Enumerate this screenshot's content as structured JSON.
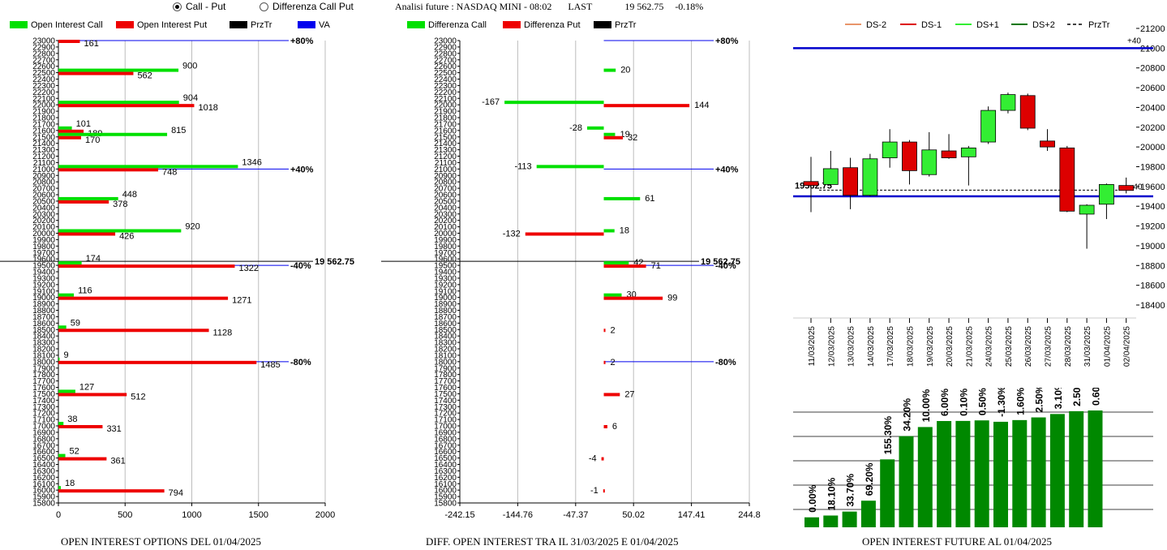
{
  "header": {
    "radio_options": [
      {
        "label": "Call - Put",
        "selected": true
      },
      {
        "label": "Differenza Call Put",
        "selected": false
      }
    ],
    "title": "Analisi future : NASDAQ MINI - 08:02",
    "last_label": "LAST",
    "last_value": "19 562.75",
    "change": "-0.18%"
  },
  "colors": {
    "call": "#00e000",
    "put": "#ee0000",
    "przTr": "#000000",
    "va": "#0000ee",
    "ds2": "#e8956a",
    "ds1": "#dd0000",
    "dsp1": "#33ee33",
    "dsp2": "#007700",
    "bar": "#008800"
  },
  "strike_axis": {
    "min": 15800,
    "max": 23000,
    "step": 100,
    "labels": [
      "23000",
      "22900",
      "22800",
      "22700",
      "22600",
      "22500",
      "22400",
      "22300",
      "22200",
      "22100",
      "22000",
      "21900",
      "21800",
      "21700",
      "21600",
      "21500",
      "21400",
      "21300",
      "21200",
      "21100",
      "21000",
      "20900",
      "20800",
      "20700",
      "20600",
      "20500",
      "20400",
      "20300",
      "20200",
      "20100",
      "20000",
      "19900",
      "19800",
      "19700",
      "19600",
      "19500",
      "19400",
      "19300",
      "19200",
      "19100",
      "19000",
      "18900",
      "18800",
      "18700",
      "18600",
      "18500",
      "18400",
      "18300",
      "18200",
      "18100",
      "18000",
      "17900",
      "17800",
      "17700",
      "17600",
      "17500",
      "17400",
      "17300",
      "17200",
      "17100",
      "17000",
      "16900",
      "16800",
      "16700",
      "16600",
      "16500",
      "16400",
      "16300",
      "16200",
      "16100",
      "16000",
      "15900",
      "15800"
    ]
  },
  "markers": [
    {
      "strike": 23000,
      "label": "+80%"
    },
    {
      "strike": 21000,
      "label": "+40%"
    },
    {
      "strike": 19562.75,
      "label": "19 562.75"
    },
    {
      "strike": 19500,
      "label": "-40%"
    },
    {
      "strike": 18000,
      "label": "-80%"
    }
  ],
  "chart_data": [
    {
      "type": "bar",
      "name": "oi-options",
      "caption": "OPEN INTEREST OPTIONS DEL 01/04/2025",
      "legend": [
        "Open Interest Call",
        "Open Interest Put",
        "PrzTr",
        "VA"
      ],
      "xlim": [
        0,
        2000
      ],
      "x_ticks": [
        "0",
        "500",
        "1000",
        "1500",
        "2000"
      ],
      "strikes": [
        23000,
        22500,
        22000,
        21600,
        21500,
        21000,
        20500,
        20000,
        19500,
        19000,
        18500,
        18000,
        17500,
        17000,
        16500,
        16000
      ],
      "call": [
        0,
        900,
        904,
        101,
        815,
        1346,
        448,
        920,
        174,
        116,
        59,
        9,
        127,
        38,
        52,
        18
      ],
      "put": [
        161,
        562,
        1018,
        189,
        170,
        748,
        378,
        426,
        1322,
        1271,
        1128,
        1485,
        512,
        331,
        361,
        794
      ],
      "call_labels": [
        "",
        "900",
        "904",
        "101",
        "815",
        "1346",
        "448",
        "920",
        "174",
        "116",
        "59",
        "9",
        "127",
        "38",
        "52",
        "18"
      ],
      "put_labels": [
        "161",
        "562",
        "1018",
        "189",
        "170",
        "748",
        "378",
        "426",
        "1322",
        "1271",
        "1128",
        "1485",
        "512",
        "331",
        "361",
        "794"
      ]
    },
    {
      "type": "bar",
      "name": "oi-difference",
      "caption": "DIFF. OPEN INTEREST TRA IL 31/03/2025 E 01/04/2025",
      "legend": [
        "Differenza Call",
        "Differenza Put",
        "PrzTr"
      ],
      "xlim": [
        -242.15,
        244.8
      ],
      "x_ticks": [
        "-242.15",
        "-144.76",
        "-47.37",
        "50.02",
        "147.41",
        "244.8"
      ],
      "call": [
        {
          "strike": 22500,
          "value": 20,
          "label": "20"
        },
        {
          "strike": 22000,
          "value": -167,
          "label": "-167"
        },
        {
          "strike": 21600,
          "value": -28,
          "label": "-28"
        },
        {
          "strike": 21500,
          "value": 19,
          "label": "19"
        },
        {
          "strike": 21000,
          "value": -113,
          "label": "-113"
        },
        {
          "strike": 20500,
          "value": 61,
          "label": "61"
        },
        {
          "strike": 20000,
          "value": 18,
          "label": "18"
        },
        {
          "strike": 19500,
          "value": 42,
          "label": "42"
        },
        {
          "strike": 19000,
          "value": 30,
          "label": "30"
        }
      ],
      "put": [
        {
          "strike": 22000,
          "value": 144,
          "label": "144"
        },
        {
          "strike": 21500,
          "value": 32,
          "label": "32"
        },
        {
          "strike": 20000,
          "value": -132,
          "label": "-132"
        },
        {
          "strike": 19500,
          "value": 71,
          "label": "71"
        },
        {
          "strike": 19000,
          "value": 99,
          "label": "99"
        },
        {
          "strike": 18500,
          "value": 2,
          "label": "2"
        },
        {
          "strike": 18000,
          "value": 2,
          "label": "2"
        },
        {
          "strike": 17500,
          "value": 27,
          "label": "27"
        },
        {
          "strike": 17000,
          "value": 6,
          "label": "6"
        },
        {
          "strike": 16500,
          "value": -4,
          "label": "-4"
        },
        {
          "strike": 16000,
          "value": -1,
          "label": "-1"
        }
      ]
    },
    {
      "type": "candlestick",
      "name": "daily-candles",
      "legend": [
        "DS-2",
        "DS-1",
        "DS+1",
        "DS+2",
        "PrzTr"
      ],
      "ylim": [
        18400,
        21200
      ],
      "y_ticks": [
        "21200",
        "21000",
        "20800",
        "20600",
        "20400",
        "20200",
        "20000",
        "19800",
        "19600",
        "19400",
        "19200",
        "19000",
        "18800",
        "18600",
        "18400"
      ],
      "dates": [
        "11/03/2025",
        "12/03/2025",
        "13/03/2025",
        "14/03/2025",
        "17/03/2025",
        "18/03/2025",
        "19/03/2025",
        "20/03/2025",
        "21/03/2025",
        "24/03/2025",
        "25/03/2025",
        "26/03/2025",
        "27/03/2025",
        "28/03/2025",
        "31/03/2025",
        "01/04/2025",
        "02/04/2025"
      ],
      "candles": [
        {
          "open": 19650,
          "close": 19610,
          "high": 19900,
          "low": 19340
        },
        {
          "open": 19620,
          "close": 19780,
          "high": 19960,
          "low": 19600
        },
        {
          "open": 19790,
          "close": 19510,
          "high": 19890,
          "low": 19370
        },
        {
          "open": 19510,
          "close": 19880,
          "high": 19930,
          "low": 19500
        },
        {
          "open": 19890,
          "close": 20050,
          "high": 20180,
          "low": 19790
        },
        {
          "open": 20050,
          "close": 19760,
          "high": 20070,
          "low": 19620
        },
        {
          "open": 19720,
          "close": 19970,
          "high": 20150,
          "low": 19700
        },
        {
          "open": 19960,
          "close": 19890,
          "high": 20130,
          "low": 19880
        },
        {
          "open": 19900,
          "close": 19990,
          "high": 20010,
          "low": 19610
        },
        {
          "open": 20050,
          "close": 20370,
          "high": 20410,
          "low": 20030
        },
        {
          "open": 20370,
          "close": 20530,
          "high": 20550,
          "low": 20340
        },
        {
          "open": 20520,
          "close": 20190,
          "high": 20540,
          "low": 20170
        },
        {
          "open": 20060,
          "close": 20000,
          "high": 20180,
          "low": 19960
        },
        {
          "open": 19990,
          "close": 19350,
          "high": 20010,
          "low": 19340
        },
        {
          "open": 19320,
          "close": 19410,
          "high": 19420,
          "low": 18970
        },
        {
          "open": 19420,
          "close": 19620,
          "high": 19630,
          "low": 19270
        },
        {
          "open": 19610,
          "close": 19560,
          "high": 19690,
          "low": 19530
        }
      ],
      "levels": [
        {
          "value": 21000,
          "label": "+40",
          "color": "#0000cc"
        },
        {
          "value": 19500,
          "label": "",
          "color": "#0000cc"
        }
      ],
      "last": {
        "value": 19562.75,
        "label": "19562.75",
        "right_label": "-40"
      }
    },
    {
      "type": "bar",
      "name": "oi-future",
      "caption": "OPEN INTEREST FUTURE AL 01/04/2025",
      "values": [
        0.0,
        18.1,
        33.7,
        69.2,
        155.3,
        34.2,
        10.0,
        6.0,
        0.1,
        0.5,
        -1.3,
        1.6,
        2.5,
        3.1,
        2.5,
        0.6
      ],
      "labels": [
        "0.00%",
        "18.10%",
        "33.70%",
        "69.20%",
        "155.30%",
        "34.20%",
        "10.00%",
        "6.00%",
        "0.10%",
        "0.50%",
        "-1.30%",
        "1.60%",
        "2.50%",
        "3.10%",
        "2.50%",
        "0.60%"
      ]
    }
  ]
}
